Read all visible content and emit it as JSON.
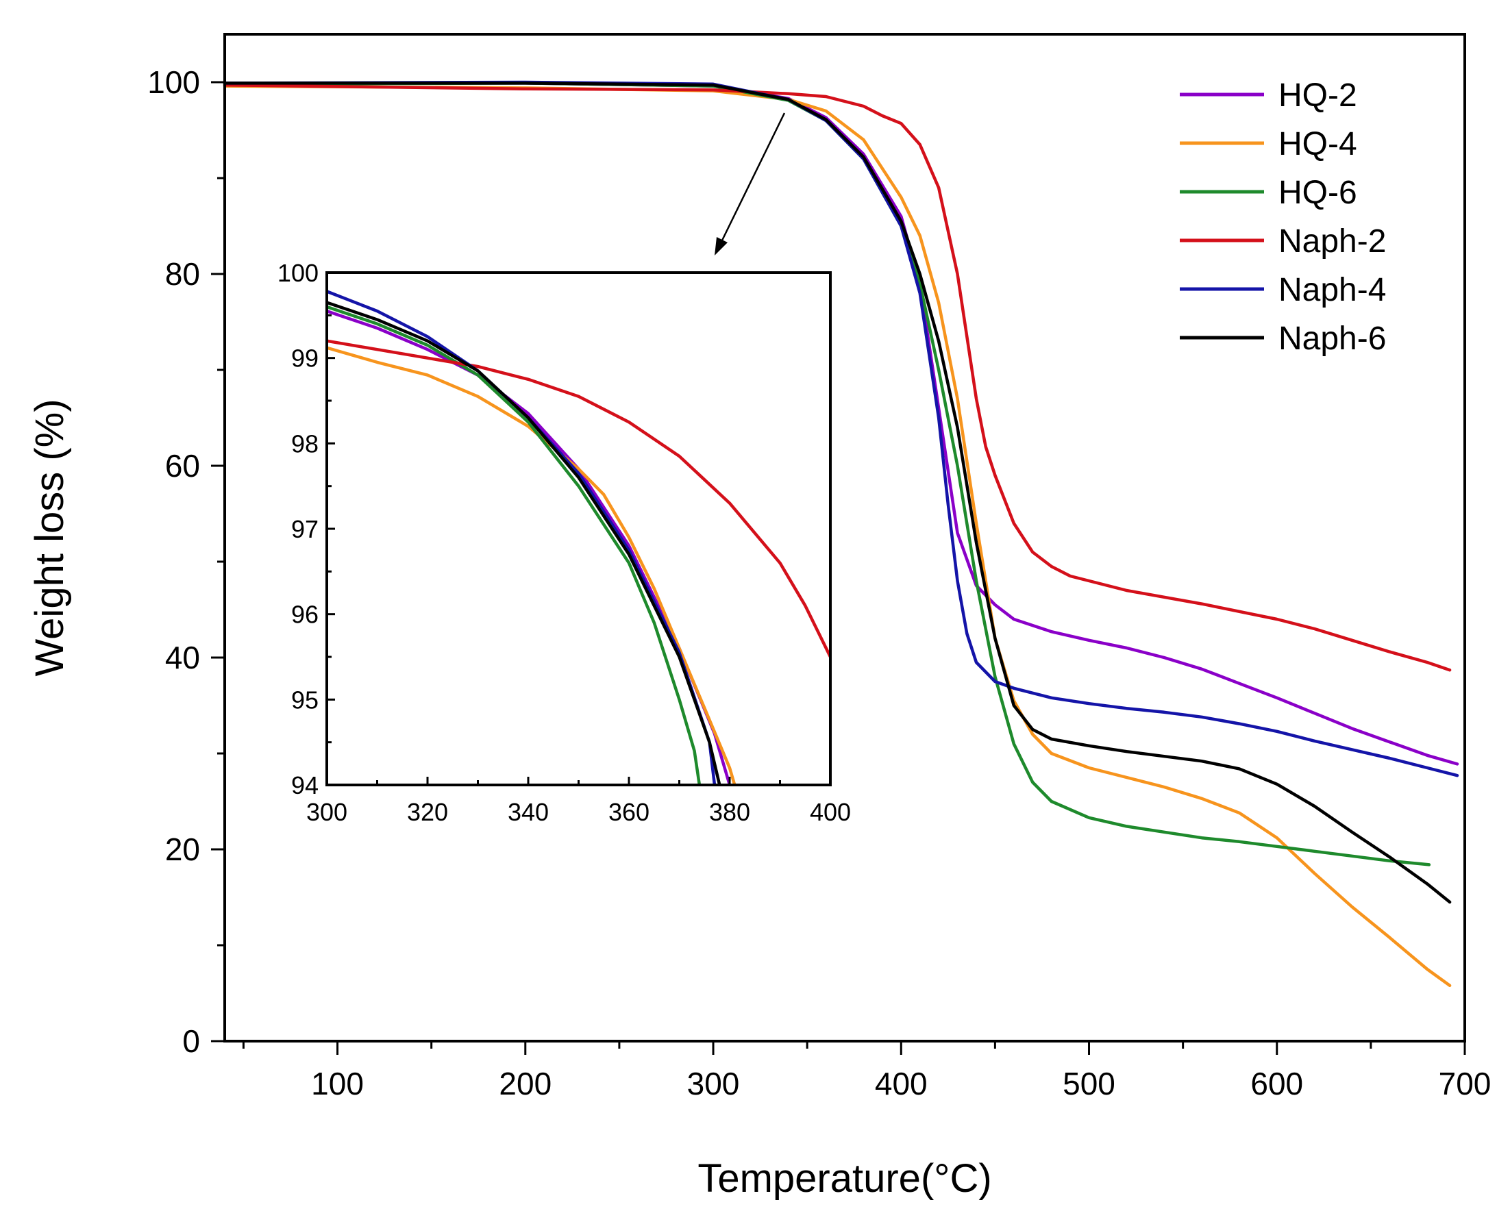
{
  "chart_data": [
    {
      "id": "main",
      "type": "line",
      "title": "",
      "xlabel": "Temperature(°C)",
      "ylabel": "Weight loss (%)",
      "xlim": [
        40,
        700
      ],
      "ylim": [
        0,
        105
      ],
      "xticks": [
        100,
        200,
        300,
        400,
        500,
        600,
        700
      ],
      "yticks": [
        0,
        20,
        40,
        60,
        80,
        100
      ],
      "legend_position": "top-right",
      "series": [
        {
          "name": "HQ-2",
          "color": "#8a00c8",
          "points": [
            [
              40,
              99.9
            ],
            [
              200,
              99.9
            ],
            [
              300,
              99.6
            ],
            [
              340,
              98.3
            ],
            [
              360,
              96.3
            ],
            [
              380,
              92.5
            ],
            [
              400,
              86
            ],
            [
              410,
              79
            ],
            [
              420,
              66
            ],
            [
              430,
              53
            ],
            [
              440,
              47.5
            ],
            [
              450,
              45.5
            ],
            [
              460,
              44
            ],
            [
              480,
              42.7
            ],
            [
              500,
              41.8
            ],
            [
              520,
              41
            ],
            [
              540,
              40
            ],
            [
              560,
              38.8
            ],
            [
              580,
              37.3
            ],
            [
              600,
              35.8
            ],
            [
              620,
              34.2
            ],
            [
              640,
              32.6
            ],
            [
              660,
              31.2
            ],
            [
              680,
              29.8
            ],
            [
              696,
              28.9
            ]
          ]
        },
        {
          "name": "HQ-4",
          "color": "#f7941d",
          "points": [
            [
              40,
              99.6
            ],
            [
              200,
              99.4
            ],
            [
              300,
              99.1
            ],
            [
              340,
              98.2
            ],
            [
              360,
              97
            ],
            [
              380,
              94
            ],
            [
              400,
              88
            ],
            [
              410,
              84
            ],
            [
              420,
              77
            ],
            [
              430,
              67
            ],
            [
              440,
              54
            ],
            [
              450,
              42
            ],
            [
              460,
              35.5
            ],
            [
              470,
              32
            ],
            [
              480,
              30
            ],
            [
              500,
              28.5
            ],
            [
              520,
              27.5
            ],
            [
              540,
              26.5
            ],
            [
              560,
              25.3
            ],
            [
              580,
              23.8
            ],
            [
              600,
              21.2
            ],
            [
              620,
              17.5
            ],
            [
              640,
              14
            ],
            [
              660,
              10.8
            ],
            [
              680,
              7.5
            ],
            [
              692,
              5.8
            ]
          ]
        },
        {
          "name": "HQ-6",
          "color": "#1e8a2c",
          "points": [
            [
              40,
              99.8
            ],
            [
              200,
              99.9
            ],
            [
              300,
              99.6
            ],
            [
              340,
              98.1
            ],
            [
              360,
              96
            ],
            [
              380,
              92
            ],
            [
              400,
              85
            ],
            [
              410,
              79
            ],
            [
              420,
              70
            ],
            [
              430,
              60
            ],
            [
              440,
              48
            ],
            [
              450,
              38
            ],
            [
              460,
              31
            ],
            [
              470,
              27
            ],
            [
              480,
              25
            ],
            [
              500,
              23.3
            ],
            [
              520,
              22.4
            ],
            [
              540,
              21.8
            ],
            [
              560,
              21.2
            ],
            [
              580,
              20.8
            ],
            [
              600,
              20.3
            ],
            [
              620,
              19.8
            ],
            [
              640,
              19.3
            ],
            [
              660,
              18.8
            ],
            [
              681,
              18.4
            ]
          ]
        },
        {
          "name": "Naph-2",
          "color": "#d4101a",
          "points": [
            [
              40,
              99.7
            ],
            [
              200,
              99.3
            ],
            [
              300,
              99.2
            ],
            [
              340,
              98.8
            ],
            [
              360,
              98.5
            ],
            [
              380,
              97.5
            ],
            [
              390,
              96.5
            ],
            [
              400,
              95.7
            ],
            [
              410,
              93.5
            ],
            [
              420,
              89
            ],
            [
              430,
              80
            ],
            [
              440,
              67
            ],
            [
              445,
              62
            ],
            [
              450,
              59
            ],
            [
              460,
              54
            ],
            [
              470,
              51
            ],
            [
              480,
              49.5
            ],
            [
              490,
              48.5
            ],
            [
              500,
              48
            ],
            [
              520,
              47
            ],
            [
              540,
              46.3
            ],
            [
              560,
              45.6
            ],
            [
              580,
              44.8
            ],
            [
              600,
              44
            ],
            [
              620,
              43
            ],
            [
              640,
              41.8
            ],
            [
              660,
              40.6
            ],
            [
              680,
              39.5
            ],
            [
              692,
              38.7
            ]
          ]
        },
        {
          "name": "Naph-4",
          "color": "#1414a8",
          "points": [
            [
              40,
              99.9
            ],
            [
              200,
              100
            ],
            [
              300,
              99.8
            ],
            [
              340,
              98.2
            ],
            [
              360,
              96
            ],
            [
              380,
              92
            ],
            [
              400,
              85
            ],
            [
              410,
              78
            ],
            [
              420,
              65
            ],
            [
              425,
              56
            ],
            [
              430,
              48
            ],
            [
              435,
              42.5
            ],
            [
              440,
              39.5
            ],
            [
              450,
              37.5
            ],
            [
              460,
              36.8
            ],
            [
              480,
              35.8
            ],
            [
              500,
              35.2
            ],
            [
              520,
              34.7
            ],
            [
              540,
              34.3
            ],
            [
              560,
              33.8
            ],
            [
              580,
              33.1
            ],
            [
              600,
              32.3
            ],
            [
              620,
              31.3
            ],
            [
              640,
              30.4
            ],
            [
              660,
              29.5
            ],
            [
              680,
              28.5
            ],
            [
              696,
              27.7
            ]
          ]
        },
        {
          "name": "Naph-6",
          "color": "#000000",
          "points": [
            [
              40,
              99.9
            ],
            [
              200,
              99.9
            ],
            [
              300,
              99.7
            ],
            [
              340,
              98.2
            ],
            [
              360,
              96.1
            ],
            [
              380,
              92.2
            ],
            [
              400,
              85.5
            ],
            [
              410,
              80
            ],
            [
              420,
              73
            ],
            [
              430,
              64
            ],
            [
              440,
              52
            ],
            [
              450,
              42
            ],
            [
              460,
              35
            ],
            [
              470,
              32.5
            ],
            [
              480,
              31.5
            ],
            [
              500,
              30.8
            ],
            [
              520,
              30.2
            ],
            [
              540,
              29.7
            ],
            [
              560,
              29.2
            ],
            [
              580,
              28.4
            ],
            [
              600,
              26.8
            ],
            [
              620,
              24.5
            ],
            [
              640,
              21.8
            ],
            [
              660,
              19.2
            ],
            [
              680,
              16.4
            ],
            [
              692,
              14.5
            ]
          ]
        }
      ]
    },
    {
      "id": "inset",
      "type": "line",
      "title": "",
      "xlabel": "",
      "ylabel": "",
      "xlim": [
        300,
        400
      ],
      "ylim": [
        94,
        100
      ],
      "xticks": [
        300,
        320,
        340,
        360,
        380,
        400
      ],
      "yticks": [
        94,
        95,
        96,
        97,
        98,
        99,
        100
      ],
      "annotation": "arrow from main curve near 340 °C pointing to inset",
      "series": [
        {
          "name": "HQ-2",
          "color": "#8a00c8",
          "points": [
            [
              300,
              99.55
            ],
            [
              310,
              99.35
            ],
            [
              320,
              99.1
            ],
            [
              330,
              98.8
            ],
            [
              340,
              98.35
            ],
            [
              350,
              97.7
            ],
            [
              360,
              96.8
            ],
            [
              370,
              95.6
            ],
            [
              377,
              94.6
            ],
            [
              380,
              94
            ]
          ]
        },
        {
          "name": "HQ-4",
          "color": "#f7941d",
          "points": [
            [
              300,
              99.12
            ],
            [
              310,
              98.95
            ],
            [
              320,
              98.8
            ],
            [
              330,
              98.55
            ],
            [
              340,
              98.2
            ],
            [
              350,
              97.7
            ],
            [
              355,
              97.4
            ],
            [
              360,
              96.9
            ],
            [
              365,
              96.3
            ],
            [
              370,
              95.6
            ],
            [
              375,
              94.9
            ],
            [
              380,
              94.2
            ],
            [
              381,
              94
            ]
          ]
        },
        {
          "name": "HQ-6",
          "color": "#1e8a2c",
          "points": [
            [
              300,
              99.6
            ],
            [
              310,
              99.4
            ],
            [
              320,
              99.15
            ],
            [
              330,
              98.8
            ],
            [
              340,
              98.25
            ],
            [
              350,
              97.5
            ],
            [
              360,
              96.6
            ],
            [
              365,
              95.9
            ],
            [
              370,
              95
            ],
            [
              373,
              94.4
            ],
            [
              374,
              94
            ]
          ]
        },
        {
          "name": "Naph-2",
          "color": "#d4101a",
          "points": [
            [
              300,
              99.2
            ],
            [
              310,
              99.1
            ],
            [
              320,
              99
            ],
            [
              330,
              98.9
            ],
            [
              340,
              98.75
            ],
            [
              350,
              98.55
            ],
            [
              360,
              98.25
            ],
            [
              370,
              97.85
            ],
            [
              380,
              97.3
            ],
            [
              390,
              96.6
            ],
            [
              395,
              96.1
            ],
            [
              400,
              95.5
            ]
          ]
        },
        {
          "name": "Naph-4",
          "color": "#1414a8",
          "points": [
            [
              300,
              99.78
            ],
            [
              310,
              99.55
            ],
            [
              320,
              99.25
            ],
            [
              330,
              98.85
            ],
            [
              340,
              98.3
            ],
            [
              350,
              97.65
            ],
            [
              360,
              96.75
            ],
            [
              370,
              95.55
            ],
            [
              376,
              94.5
            ],
            [
              377,
              94
            ]
          ]
        },
        {
          "name": "Naph-6",
          "color": "#000000",
          "points": [
            [
              300,
              99.65
            ],
            [
              310,
              99.45
            ],
            [
              320,
              99.2
            ],
            [
              330,
              98.85
            ],
            [
              340,
              98.3
            ],
            [
              350,
              97.6
            ],
            [
              360,
              96.7
            ],
            [
              370,
              95.5
            ],
            [
              376,
              94.5
            ],
            [
              378,
              94
            ]
          ]
        }
      ]
    }
  ]
}
